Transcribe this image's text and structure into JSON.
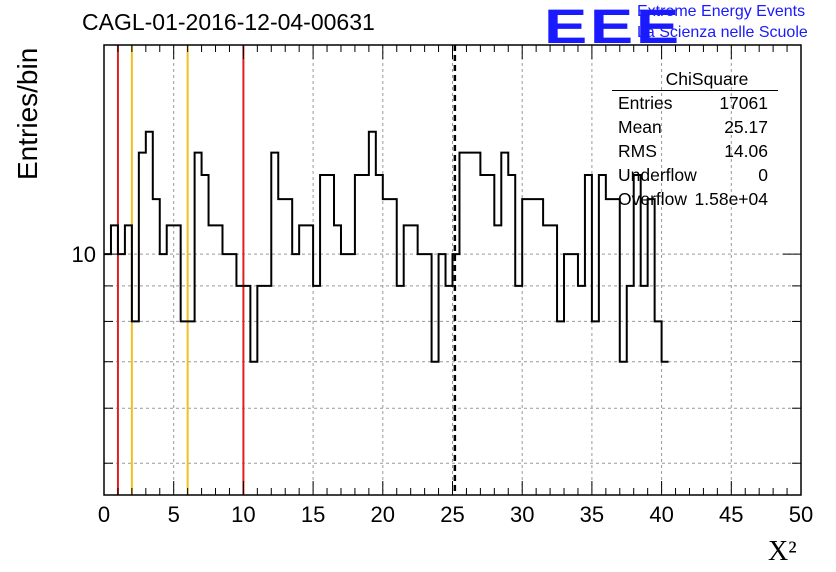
{
  "header": {
    "run_title": "CAGL-01-2016-12-04-00631",
    "logo_text": "EEE",
    "org_line1": "Extreme Energy Events",
    "org_line2": "La Scienza nelle Scuole"
  },
  "stats_box": {
    "title": "ChiSquare",
    "rows": [
      {
        "key": "Entries",
        "value": "17061"
      },
      {
        "key": "Mean",
        "value": "25.17"
      },
      {
        "key": "RMS",
        "value": "14.06"
      },
      {
        "key": "Underflow",
        "value": "0"
      },
      {
        "key": "Overflow",
        "value": "1.58e+04"
      }
    ]
  },
  "chart_data": {
    "type": "histogram",
    "title": "CAGL-01-2016-12-04-00631",
    "xlabel": "X²",
    "ylabel": "Entries/bin",
    "y_scale": "log",
    "xlim": [
      0,
      50
    ],
    "ylim": [
      4.5,
      20
    ],
    "x_ticks": [
      "0",
      "5",
      "10",
      "15",
      "20",
      "25",
      "30",
      "35",
      "40",
      "45",
      "50"
    ],
    "y_tick_labels": [
      {
        "value": 10,
        "label": "10"
      }
    ],
    "grid": true,
    "bin_width": 0.5,
    "bin_values": [
      10,
      11,
      10,
      11,
      8,
      14,
      15,
      12,
      10,
      11,
      11,
      8,
      8,
      14,
      13,
      11,
      11,
      10,
      10,
      9,
      9,
      7,
      9,
      9,
      14,
      12,
      12,
      10,
      11,
      11,
      9,
      13,
      13,
      11,
      10,
      10,
      13,
      13,
      15,
      13,
      12,
      12,
      9,
      11,
      11,
      10,
      10,
      7,
      10,
      9,
      10,
      14,
      14,
      14,
      13,
      13,
      11,
      14,
      13,
      9,
      12,
      12,
      12,
      11,
      11,
      8,
      10,
      10,
      9,
      13,
      8,
      13,
      12,
      12,
      7,
      9,
      13,
      9,
      12,
      8,
      7
    ],
    "reference_lines": [
      {
        "x": 1,
        "color": "#e02020",
        "style": "solid"
      },
      {
        "x": 2,
        "color": "#f0c020",
        "style": "solid"
      },
      {
        "x": 6,
        "color": "#f0c020",
        "style": "solid"
      },
      {
        "x": 10,
        "color": "#e02020",
        "style": "solid"
      },
      {
        "x": 25.17,
        "color": "#000000",
        "style": "dashed"
      }
    ],
    "line_color": "#000000"
  }
}
